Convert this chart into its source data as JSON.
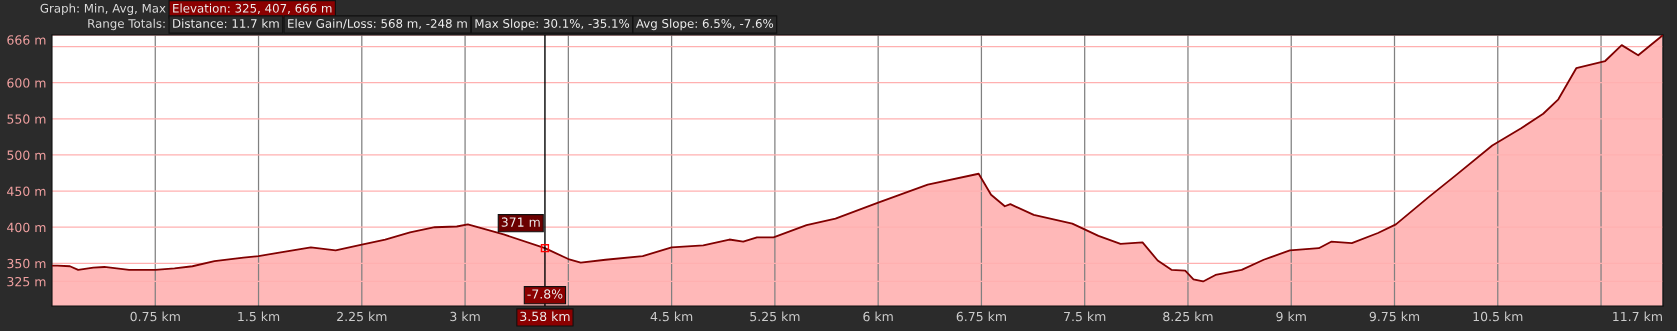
{
  "chart_data": {
    "type": "area",
    "x": [
      0,
      0.04,
      0.13,
      0.19,
      0.3,
      0.38,
      0.56,
      0.75,
      0.89,
      1.02,
      1.18,
      1.39,
      1.5,
      1.65,
      1.88,
      2.06,
      2.25,
      2.42,
      2.6,
      2.78,
      2.94,
      3.02,
      3.28,
      3.58,
      3.75,
      3.84,
      4.02,
      4.29,
      4.5,
      4.73,
      4.92,
      5.02,
      5.12,
      5.24,
      5.48,
      5.69,
      6.0,
      6.36,
      6.73,
      6.82,
      6.92,
      6.96,
      7.13,
      7.41,
      7.6,
      7.76,
      7.92,
      8.03,
      8.13,
      8.23,
      8.29,
      8.36,
      8.45,
      8.64,
      8.8,
      8.99,
      9.2,
      9.29,
      9.44,
      9.63,
      9.76,
      10.0,
      10.19,
      10.46,
      10.67,
      10.83,
      10.94,
      11.07,
      11.28,
      11.4,
      11.52,
      11.7
    ],
    "series": [
      {
        "color": "#800000",
        "values": [
          347,
          347,
          346,
          341,
          344,
          345,
          341,
          341,
          343,
          346,
          353,
          358,
          360,
          365,
          372,
          368,
          376,
          383,
          393,
          400,
          401,
          404,
          390,
          371,
          356,
          351,
          355,
          360,
          372,
          375,
          383,
          380,
          386,
          386,
          403,
          412,
          434,
          459,
          474,
          445,
          429,
          432,
          417,
          405,
          388,
          377,
          379,
          354,
          341,
          340,
          328,
          325,
          334,
          341,
          355,
          368,
          371,
          380,
          378,
          392,
          404,
          442,
          471,
          513,
          537,
          557,
          577,
          620,
          630,
          652,
          638,
          666
        ]
      }
    ],
    "xlim": [
      0,
      11.7
    ],
    "xticks": [
      {
        "value": 0.75,
        "label": "0.75 km"
      },
      {
        "value": 1.5,
        "label": "1.5 km"
      },
      {
        "value": 2.25,
        "label": "2.25 km"
      },
      {
        "value": 3,
        "label": "3 km"
      },
      {
        "value": 3.75,
        "label": null
      },
      {
        "value": 4.5,
        "label": "4.5 km"
      },
      {
        "value": 5.25,
        "label": "5.25 km"
      },
      {
        "value": 6,
        "label": "6 km"
      },
      {
        "value": 6.75,
        "label": "6.75 km"
      },
      {
        "value": 7.5,
        "label": "7.5 km"
      },
      {
        "value": 8.25,
        "label": "8.25 km"
      },
      {
        "value": 9,
        "label": "9 km"
      },
      {
        "value": 9.75,
        "label": "9.75 km"
      },
      {
        "value": 10.5,
        "label": "10.5 km"
      },
      {
        "value": 11.25,
        "label": null
      },
      {
        "value": 11.7,
        "label": "11.7 km"
      }
    ],
    "ylim": [
      291,
      666
    ],
    "yticks": [
      {
        "value": 325,
        "label": "325 m"
      },
      {
        "value": 350,
        "label": "350 m"
      },
      {
        "value": 400,
        "label": "400 m"
      },
      {
        "value": 450,
        "label": "450 m"
      },
      {
        "value": 500,
        "label": "500 m"
      },
      {
        "value": 550,
        "label": "550 m"
      },
      {
        "value": 600,
        "label": "600 m"
      },
      {
        "value": 650,
        "label": null
      },
      {
        "value": 666,
        "label": "666 m"
      }
    ],
    "grid": true,
    "ref_lines": [
      {
        "axis": "x",
        "value": 3.58,
        "label": "3.58 km",
        "color": "#000000"
      }
    ],
    "annotations": [
      "Graph: Min, Avg, Max",
      "Elevation: 325, 407, 666 m",
      "Range Totals:",
      "Distance: 11.7 km",
      "Elev Gain/Loss: 568 m, -248 m",
      "Max Slope: 30.1%, -35.1%",
      "Avg Slope: 6.5%, -7.6%",
      "-7.8%",
      {
        "text": "371 m",
        "x": 3.58,
        "y": 371
      }
    ]
  }
}
